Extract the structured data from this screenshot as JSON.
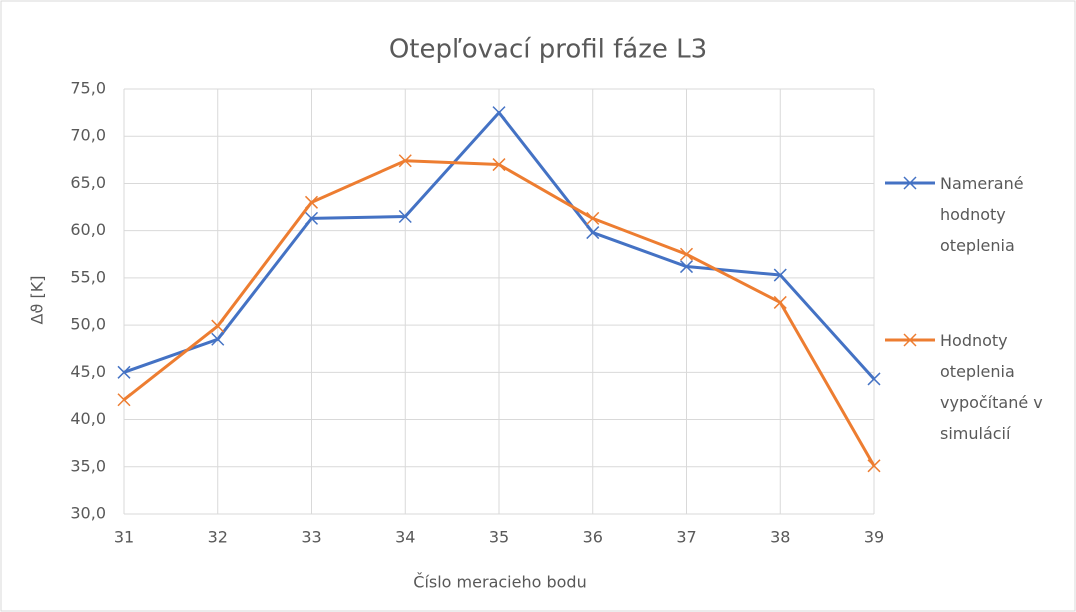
{
  "chart_data": {
    "type": "line",
    "title": "Otepľovací profil fáze L3",
    "xlabel": "Číslo meracieho bodu",
    "ylabel": "Δϑ [K]",
    "x": [
      31,
      32,
      33,
      34,
      35,
      36,
      37,
      38,
      39
    ],
    "xlim": [
      31,
      39
    ],
    "xticks": [
      31,
      32,
      33,
      34,
      35,
      36,
      37,
      38,
      39
    ],
    "ylim": [
      30,
      75
    ],
    "yticks": [
      {
        "value": 30,
        "label": "30,0"
      },
      {
        "value": 35,
        "label": "35,0"
      },
      {
        "value": 40,
        "label": "40,0"
      },
      {
        "value": 45,
        "label": "45,0"
      },
      {
        "value": 50,
        "label": "50,0"
      },
      {
        "value": 55,
        "label": "55,0"
      },
      {
        "value": 60,
        "label": "60,0"
      },
      {
        "value": 65,
        "label": "65,0"
      },
      {
        "value": 70,
        "label": "70,0"
      },
      {
        "value": 75,
        "label": "75,0"
      }
    ],
    "grid": true,
    "legend": "right",
    "series": [
      {
        "name": "Namerané hodnoty oteplenia",
        "color": "#4472c4",
        "values": [
          45.0,
          48.5,
          61.3,
          61.5,
          72.5,
          59.8,
          56.2,
          55.3,
          44.3
        ]
      },
      {
        "name": "Hodnoty oteplenia vypočítané v simulácií",
        "color": "#ed7d31",
        "values": [
          42.1,
          49.9,
          63.0,
          67.4,
          67.0,
          61.3,
          57.5,
          52.4,
          35.1
        ]
      }
    ]
  }
}
